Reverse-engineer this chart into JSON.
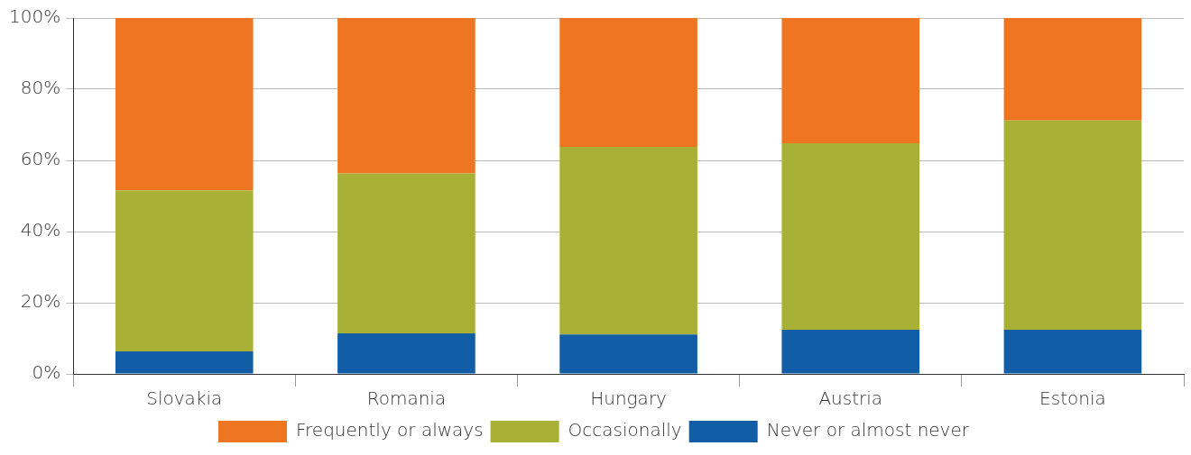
{
  "chart_data": {
    "type": "bar",
    "stacked": true,
    "categories": [
      "Slovakia",
      "Romania",
      "Hungary",
      "Austria",
      "Estonia"
    ],
    "series": [
      {
        "name": "Never or almost never",
        "color": "#115ea6",
        "values": [
          6.3,
          11.4,
          11.1,
          12.4,
          12.4
        ]
      },
      {
        "name": "Occasionally",
        "color": "#a8b036",
        "values": [
          45.3,
          44.9,
          52.7,
          52.4,
          58.8
        ]
      },
      {
        "name": "Frequently or always",
        "color": "#ee7623",
        "values": [
          48.4,
          43.7,
          36.2,
          35.2,
          28.8
        ]
      }
    ],
    "ylim": [
      0,
      100
    ],
    "yticks": [
      {
        "value": 0,
        "label": "0%"
      },
      {
        "value": 20,
        "label": "20%"
      },
      {
        "value": 40,
        "label": "40%"
      },
      {
        "value": 60,
        "label": "60%"
      },
      {
        "value": 80,
        "label": "80%"
      },
      {
        "value": 100,
        "label": "100%"
      }
    ],
    "grid": "y",
    "legend": "bottom"
  }
}
